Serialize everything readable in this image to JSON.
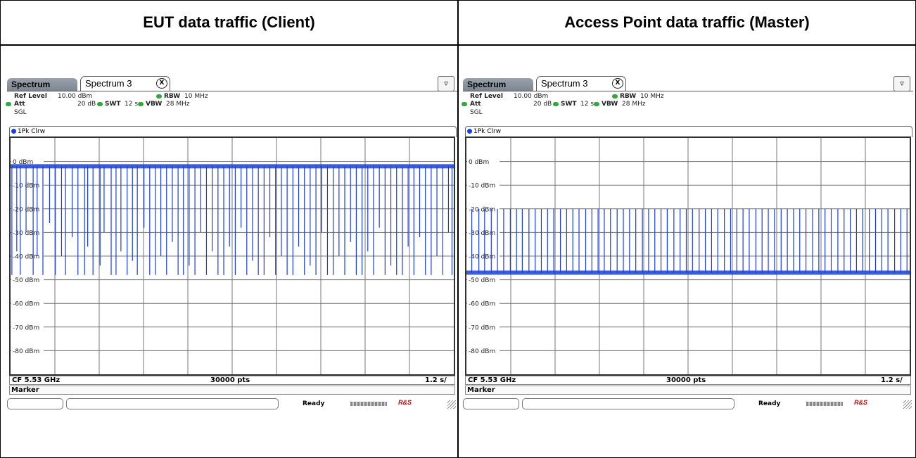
{
  "panels": [
    {
      "header": "EUT data traffic (Client)",
      "tabs": {
        "first": "Spectrum",
        "second": "Spectrum 3",
        "close_icon": "x-circle-icon",
        "menu_icon": "menu-icon"
      },
      "params": {
        "ref_level_label": "Ref Level",
        "ref_level_value": "10.00 dBm",
        "att_label": "Att",
        "att_value": "20 dB",
        "swt_label": "SWT",
        "swt_value": "12 s",
        "rbw_label": "RBW",
        "rbw_value": "10 MHz",
        "vbw_label": "VBW",
        "vbw_value": "28 MHz",
        "mode": "SGL"
      },
      "trace_label": "1Pk Clrw",
      "status": {
        "cf": "CF 5.53 GHz",
        "pts": "30000 pts",
        "span": "1.2 s/"
      },
      "marker_label": "Marker",
      "ready_label": "Ready"
    },
    {
      "header": "Access Point data traffic (Master)",
      "tabs": {
        "first": "Spectrum",
        "second": "Spectrum 3",
        "close_icon": "x-circle-icon",
        "menu_icon": "menu-icon"
      },
      "params": {
        "ref_level_label": "Ref Level",
        "ref_level_value": "10.00 dBm",
        "att_label": "Att",
        "att_value": "20 dB",
        "swt_label": "SWT",
        "swt_value": "12 s",
        "rbw_label": "RBW",
        "rbw_value": "10 MHz",
        "vbw_label": "VBW",
        "vbw_value": "28 MHz",
        "mode": "SGL"
      },
      "trace_label": "1Pk Clrw",
      "status": {
        "cf": "CF 5.53 GHz",
        "pts": "30000 pts",
        "span": "1.2 s/"
      },
      "marker_label": "Marker",
      "ready_label": "Ready"
    }
  ],
  "chart_data": [
    {
      "type": "line",
      "xlabel": "",
      "ylabel": "",
      "ylim": [
        -90,
        10
      ],
      "y_ticks": [
        "0 dBm",
        "-10 dBm",
        "-20 dBm",
        "-30 dBm",
        "-40 dBm",
        "-50 dBm",
        "-60 dBm",
        "-70 dBm",
        "-80 dBm"
      ],
      "x_divisions": 10,
      "baseline": -2,
      "series": [
        {
          "values": [
            [
              0.3,
              -48
            ],
            [
              1.4,
              -38
            ],
            [
              2.2,
              -48
            ],
            [
              3.5,
              -30
            ],
            [
              5.1,
              -48
            ],
            [
              6.0,
              -40
            ],
            [
              7.3,
              -48
            ],
            [
              8.8,
              -26
            ],
            [
              10.1,
              -48
            ],
            [
              11.5,
              -40
            ],
            [
              12.4,
              -48
            ],
            [
              13.9,
              -32
            ],
            [
              15.2,
              -48
            ],
            [
              16.7,
              -48
            ],
            [
              17.4,
              -36
            ],
            [
              18.6,
              -48
            ],
            [
              20.2,
              -44
            ],
            [
              21.1,
              -30
            ],
            [
              22.7,
              -48
            ],
            [
              23.8,
              -48
            ],
            [
              24.9,
              -38
            ],
            [
              26.3,
              -48
            ],
            [
              27.5,
              -42
            ],
            [
              28.6,
              -48
            ],
            [
              30.1,
              -28
            ],
            [
              31.4,
              -48
            ],
            [
              32.7,
              -48
            ],
            [
              33.9,
              -40
            ],
            [
              35.2,
              -48
            ],
            [
              36.5,
              -34
            ],
            [
              37.8,
              -48
            ],
            [
              39.0,
              -48
            ],
            [
              40.3,
              -44
            ],
            [
              41.6,
              -48
            ],
            [
              42.9,
              -30
            ],
            [
              44.2,
              -48
            ],
            [
              45.5,
              -38
            ],
            [
              46.8,
              -48
            ],
            [
              48.1,
              -48
            ],
            [
              49.4,
              -36
            ],
            [
              50.7,
              -48
            ],
            [
              52.0,
              -28
            ],
            [
              53.3,
              -48
            ],
            [
              54.6,
              -42
            ],
            [
              55.9,
              -48
            ],
            [
              57.2,
              -48
            ],
            [
              58.5,
              -32
            ],
            [
              59.8,
              -48
            ],
            [
              61.1,
              -40
            ],
            [
              62.4,
              -48
            ],
            [
              63.7,
              -48
            ],
            [
              65.0,
              -36
            ],
            [
              66.3,
              -48
            ],
            [
              67.6,
              -44
            ],
            [
              68.9,
              -48
            ],
            [
              70.2,
              -30
            ],
            [
              71.5,
              -48
            ],
            [
              72.8,
              -48
            ],
            [
              74.1,
              -40
            ],
            [
              75.4,
              -48
            ],
            [
              76.7,
              -34
            ],
            [
              78.0,
              -48
            ],
            [
              79.3,
              -48
            ],
            [
              80.6,
              -38
            ],
            [
              81.9,
              -48
            ],
            [
              83.2,
              -28
            ],
            [
              84.5,
              -48
            ],
            [
              85.8,
              -44
            ],
            [
              87.1,
              -48
            ],
            [
              88.4,
              -48
            ],
            [
              89.7,
              -36
            ],
            [
              91.0,
              -48
            ],
            [
              92.3,
              -32
            ],
            [
              93.6,
              -48
            ],
            [
              94.9,
              -48
            ],
            [
              96.2,
              -40
            ],
            [
              97.5,
              -48
            ],
            [
              98.8,
              -30
            ],
            [
              99.6,
              -48
            ]
          ]
        }
      ]
    },
    {
      "type": "line",
      "xlabel": "",
      "ylabel": "",
      "ylim": [
        -90,
        10
      ],
      "y_ticks": [
        "0 dBm",
        "-10 dBm",
        "-20 dBm",
        "-30 dBm",
        "-40 dBm",
        "-50 dBm",
        "-60 dBm",
        "-70 dBm",
        "-80 dBm"
      ],
      "x_divisions": 10,
      "baseline": -47,
      "series": [
        {
          "values": [
            [
              1.2,
              -20
            ],
            [
              2.8,
              -20
            ],
            [
              4.1,
              -20
            ],
            [
              5.6,
              -20
            ],
            [
              7.0,
              -20
            ],
            [
              8.4,
              -20
            ],
            [
              9.9,
              -20
            ],
            [
              11.3,
              -20
            ],
            [
              12.6,
              -20
            ],
            [
              14.1,
              -20
            ],
            [
              15.5,
              -20
            ],
            [
              16.9,
              -20
            ],
            [
              18.3,
              -20
            ],
            [
              19.7,
              -20
            ],
            [
              21.2,
              -20
            ],
            [
              22.6,
              -20
            ],
            [
              24.0,
              -20
            ],
            [
              25.4,
              -20
            ],
            [
              26.9,
              -20
            ],
            [
              28.3,
              -20
            ],
            [
              29.7,
              -20
            ],
            [
              31.1,
              -20
            ],
            [
              32.5,
              -20
            ],
            [
              34.0,
              -20
            ],
            [
              35.4,
              -20
            ],
            [
              36.8,
              -20
            ],
            [
              38.2,
              -20
            ],
            [
              39.7,
              -20
            ],
            [
              41.1,
              -20
            ],
            [
              42.5,
              -20
            ],
            [
              43.9,
              -20
            ],
            [
              45.3,
              -20
            ],
            [
              46.8,
              -20
            ],
            [
              48.2,
              -20
            ],
            [
              49.6,
              -20
            ],
            [
              51.0,
              -20
            ],
            [
              52.5,
              -20
            ],
            [
              53.9,
              -20
            ],
            [
              55.3,
              -20
            ],
            [
              56.7,
              -20
            ],
            [
              58.2,
              -20
            ],
            [
              59.6,
              -20
            ],
            [
              61.0,
              -20
            ],
            [
              62.4,
              -20
            ],
            [
              63.8,
              -20
            ],
            [
              65.3,
              -20
            ],
            [
              66.7,
              -20
            ],
            [
              68.1,
              -20
            ],
            [
              69.5,
              -20
            ],
            [
              71.0,
              -20
            ],
            [
              72.4,
              -20
            ],
            [
              73.8,
              -20
            ],
            [
              75.2,
              -20
            ],
            [
              76.6,
              -20
            ],
            [
              78.1,
              -20
            ],
            [
              79.5,
              -20
            ],
            [
              80.9,
              -20
            ],
            [
              82.3,
              -20
            ],
            [
              83.8,
              -20
            ],
            [
              85.2,
              -20
            ],
            [
              86.6,
              -20
            ],
            [
              88.0,
              -20
            ],
            [
              89.4,
              -20
            ],
            [
              90.9,
              -20
            ],
            [
              92.3,
              -20
            ],
            [
              93.7,
              -20
            ],
            [
              95.1,
              -20
            ],
            [
              96.6,
              -20
            ],
            [
              98.0,
              -20
            ],
            [
              99.4,
              -20
            ]
          ]
        }
      ]
    }
  ],
  "colors": {
    "trace": "#1b3fd6",
    "grid": "#777777",
    "led": "#2faa3a"
  }
}
